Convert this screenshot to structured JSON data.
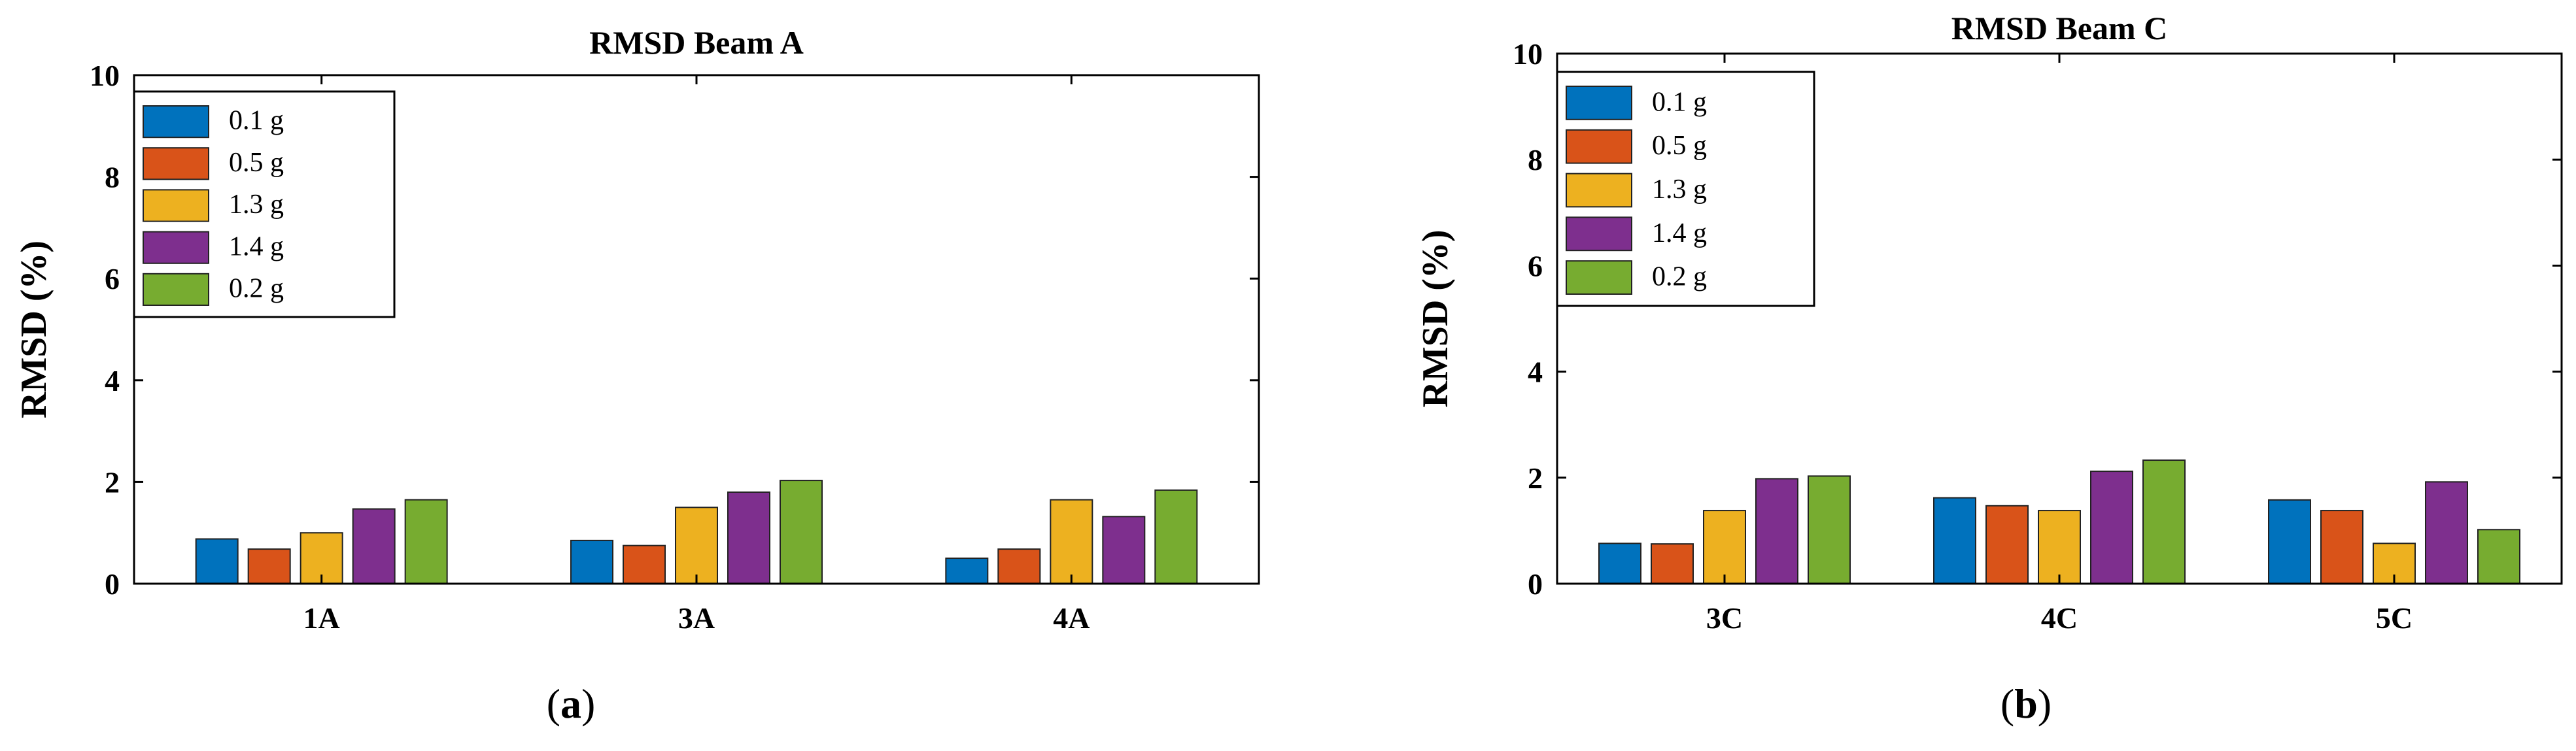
{
  "figure": {
    "panel_labels": [
      "a",
      "b"
    ]
  },
  "chart_data": [
    {
      "type": "bar",
      "title": "RMSD Beam A",
      "xlabel": "",
      "ylabel": "RMSD (%)",
      "ylim": [
        0,
        10
      ],
      "yticks": [
        "0",
        "2",
        "4",
        "6",
        "8",
        "10"
      ],
      "categories": [
        "1A",
        "3A",
        "4A"
      ],
      "legend_position": "top-left",
      "grid": false,
      "series": [
        {
          "name": "0.1 g",
          "color": "#0072BD",
          "values": [
            0.88,
            0.85,
            0.5
          ]
        },
        {
          "name": "0.5 g",
          "color": "#D95319",
          "values": [
            0.68,
            0.75,
            0.68
          ]
        },
        {
          "name": "1.3 g",
          "color": "#EDB120",
          "values": [
            1.0,
            1.5,
            1.65
          ]
        },
        {
          "name": "1.4 g",
          "color": "#7E2F8E",
          "values": [
            1.47,
            1.8,
            1.32
          ]
        },
        {
          "name": "0.2 g",
          "color": "#77AC30",
          "values": [
            1.65,
            2.03,
            1.84
          ]
        }
      ]
    },
    {
      "type": "bar",
      "title": "RMSD Beam C",
      "xlabel": "",
      "ylabel": "RMSD (%)",
      "ylim": [
        0,
        10
      ],
      "yticks": [
        "0",
        "2",
        "4",
        "6",
        "8",
        "10"
      ],
      "categories": [
        "3C",
        "4C",
        "5C"
      ],
      "legend_position": "top-left",
      "grid": false,
      "series": [
        {
          "name": "0.1 g",
          "color": "#0072BD",
          "values": [
            0.76,
            1.62,
            1.58
          ]
        },
        {
          "name": "0.5 g",
          "color": "#D95319",
          "values": [
            0.75,
            1.47,
            1.38
          ]
        },
        {
          "name": "1.3 g",
          "color": "#EDB120",
          "values": [
            1.38,
            1.38,
            0.76
          ]
        },
        {
          "name": "1.4 g",
          "color": "#7E2F8E",
          "values": [
            1.98,
            2.12,
            1.92
          ]
        },
        {
          "name": "0.2 g",
          "color": "#77AC30",
          "values": [
            2.03,
            2.33,
            1.02
          ]
        }
      ]
    }
  ]
}
